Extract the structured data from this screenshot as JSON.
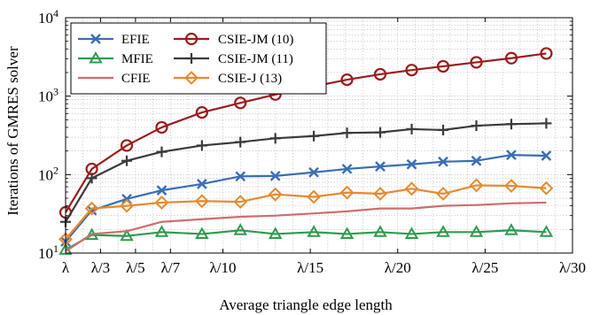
{
  "chart_data": {
    "type": "line",
    "title": "",
    "xlabel": "Average triangle edge length",
    "ylabel": "Iterations of GMRES solver",
    "yscale": "log",
    "ylim": [
      10,
      10000
    ],
    "xlim": [
      1,
      30
    ],
    "grid": true,
    "legend_position": "top-left",
    "x_ticks": [
      {
        "value": 1,
        "label": "λ"
      },
      {
        "value": 3,
        "label": "λ/3"
      },
      {
        "value": 5,
        "label": "λ/5"
      },
      {
        "value": 7,
        "label": "λ/7"
      },
      {
        "value": 10,
        "label": "λ/10"
      },
      {
        "value": 15,
        "label": "λ/15"
      },
      {
        "value": 20,
        "label": "λ/20"
      },
      {
        "value": 25,
        "label": "λ/25"
      },
      {
        "value": 30,
        "label": "λ/30"
      }
    ],
    "y_ticks": [
      {
        "value": 10,
        "base": "10",
        "exp": "1"
      },
      {
        "value": 100,
        "base": "10",
        "exp": "2"
      },
      {
        "value": 1000,
        "base": "10",
        "exp": "3"
      },
      {
        "value": 10000,
        "base": "10",
        "exp": "4"
      }
    ],
    "x": [
      1,
      2.5,
      4.5,
      6.5,
      8.8,
      11,
      13,
      15.2,
      17.1,
      19,
      20.8,
      22.6,
      24.5,
      26.5,
      28.5
    ],
    "series": [
      {
        "name": "EFIE",
        "color": "#3a6eb5",
        "marker": "x",
        "values": [
          14,
          35,
          49,
          63,
          76,
          95,
          96,
          107,
          118,
          127,
          135,
          146,
          150,
          178,
          174
        ]
      },
      {
        "name": "MFIE",
        "color": "#2e9b4e",
        "marker": "triangle",
        "values": [
          11,
          17,
          16.5,
          18.5,
          17.5,
          19.5,
          17.5,
          18.5,
          17.5,
          18.5,
          17.5,
          18.5,
          18.5,
          19.5,
          18.5
        ]
      },
      {
        "name": "CFIE",
        "color": "#cd6e6e",
        "marker": "none",
        "values": [
          10.5,
          17.5,
          19,
          25,
          27,
          29,
          30,
          32,
          34,
          37,
          37,
          40,
          41,
          43,
          44
        ]
      },
      {
        "name": "CSIE-JM (10)",
        "color": "#9b1c1c",
        "marker": "circle",
        "values": [
          33,
          118,
          235,
          400,
          620,
          820,
          1050,
          1330,
          1620,
          1900,
          2150,
          2400,
          2700,
          3050,
          3500
        ]
      },
      {
        "name": "CSIE-JM (11)",
        "color": "#3b3b3b",
        "marker": "plus",
        "values": [
          25,
          90,
          150,
          195,
          235,
          260,
          290,
          310,
          340,
          345,
          380,
          370,
          420,
          440,
          450
        ]
      },
      {
        "name": "CSIE-J (13)",
        "color": "#e68a2e",
        "marker": "diamond",
        "values": [
          15,
          37,
          40,
          44,
          46,
          45,
          56,
          52,
          59,
          57,
          66,
          57,
          73,
          72,
          67
        ]
      }
    ]
  }
}
